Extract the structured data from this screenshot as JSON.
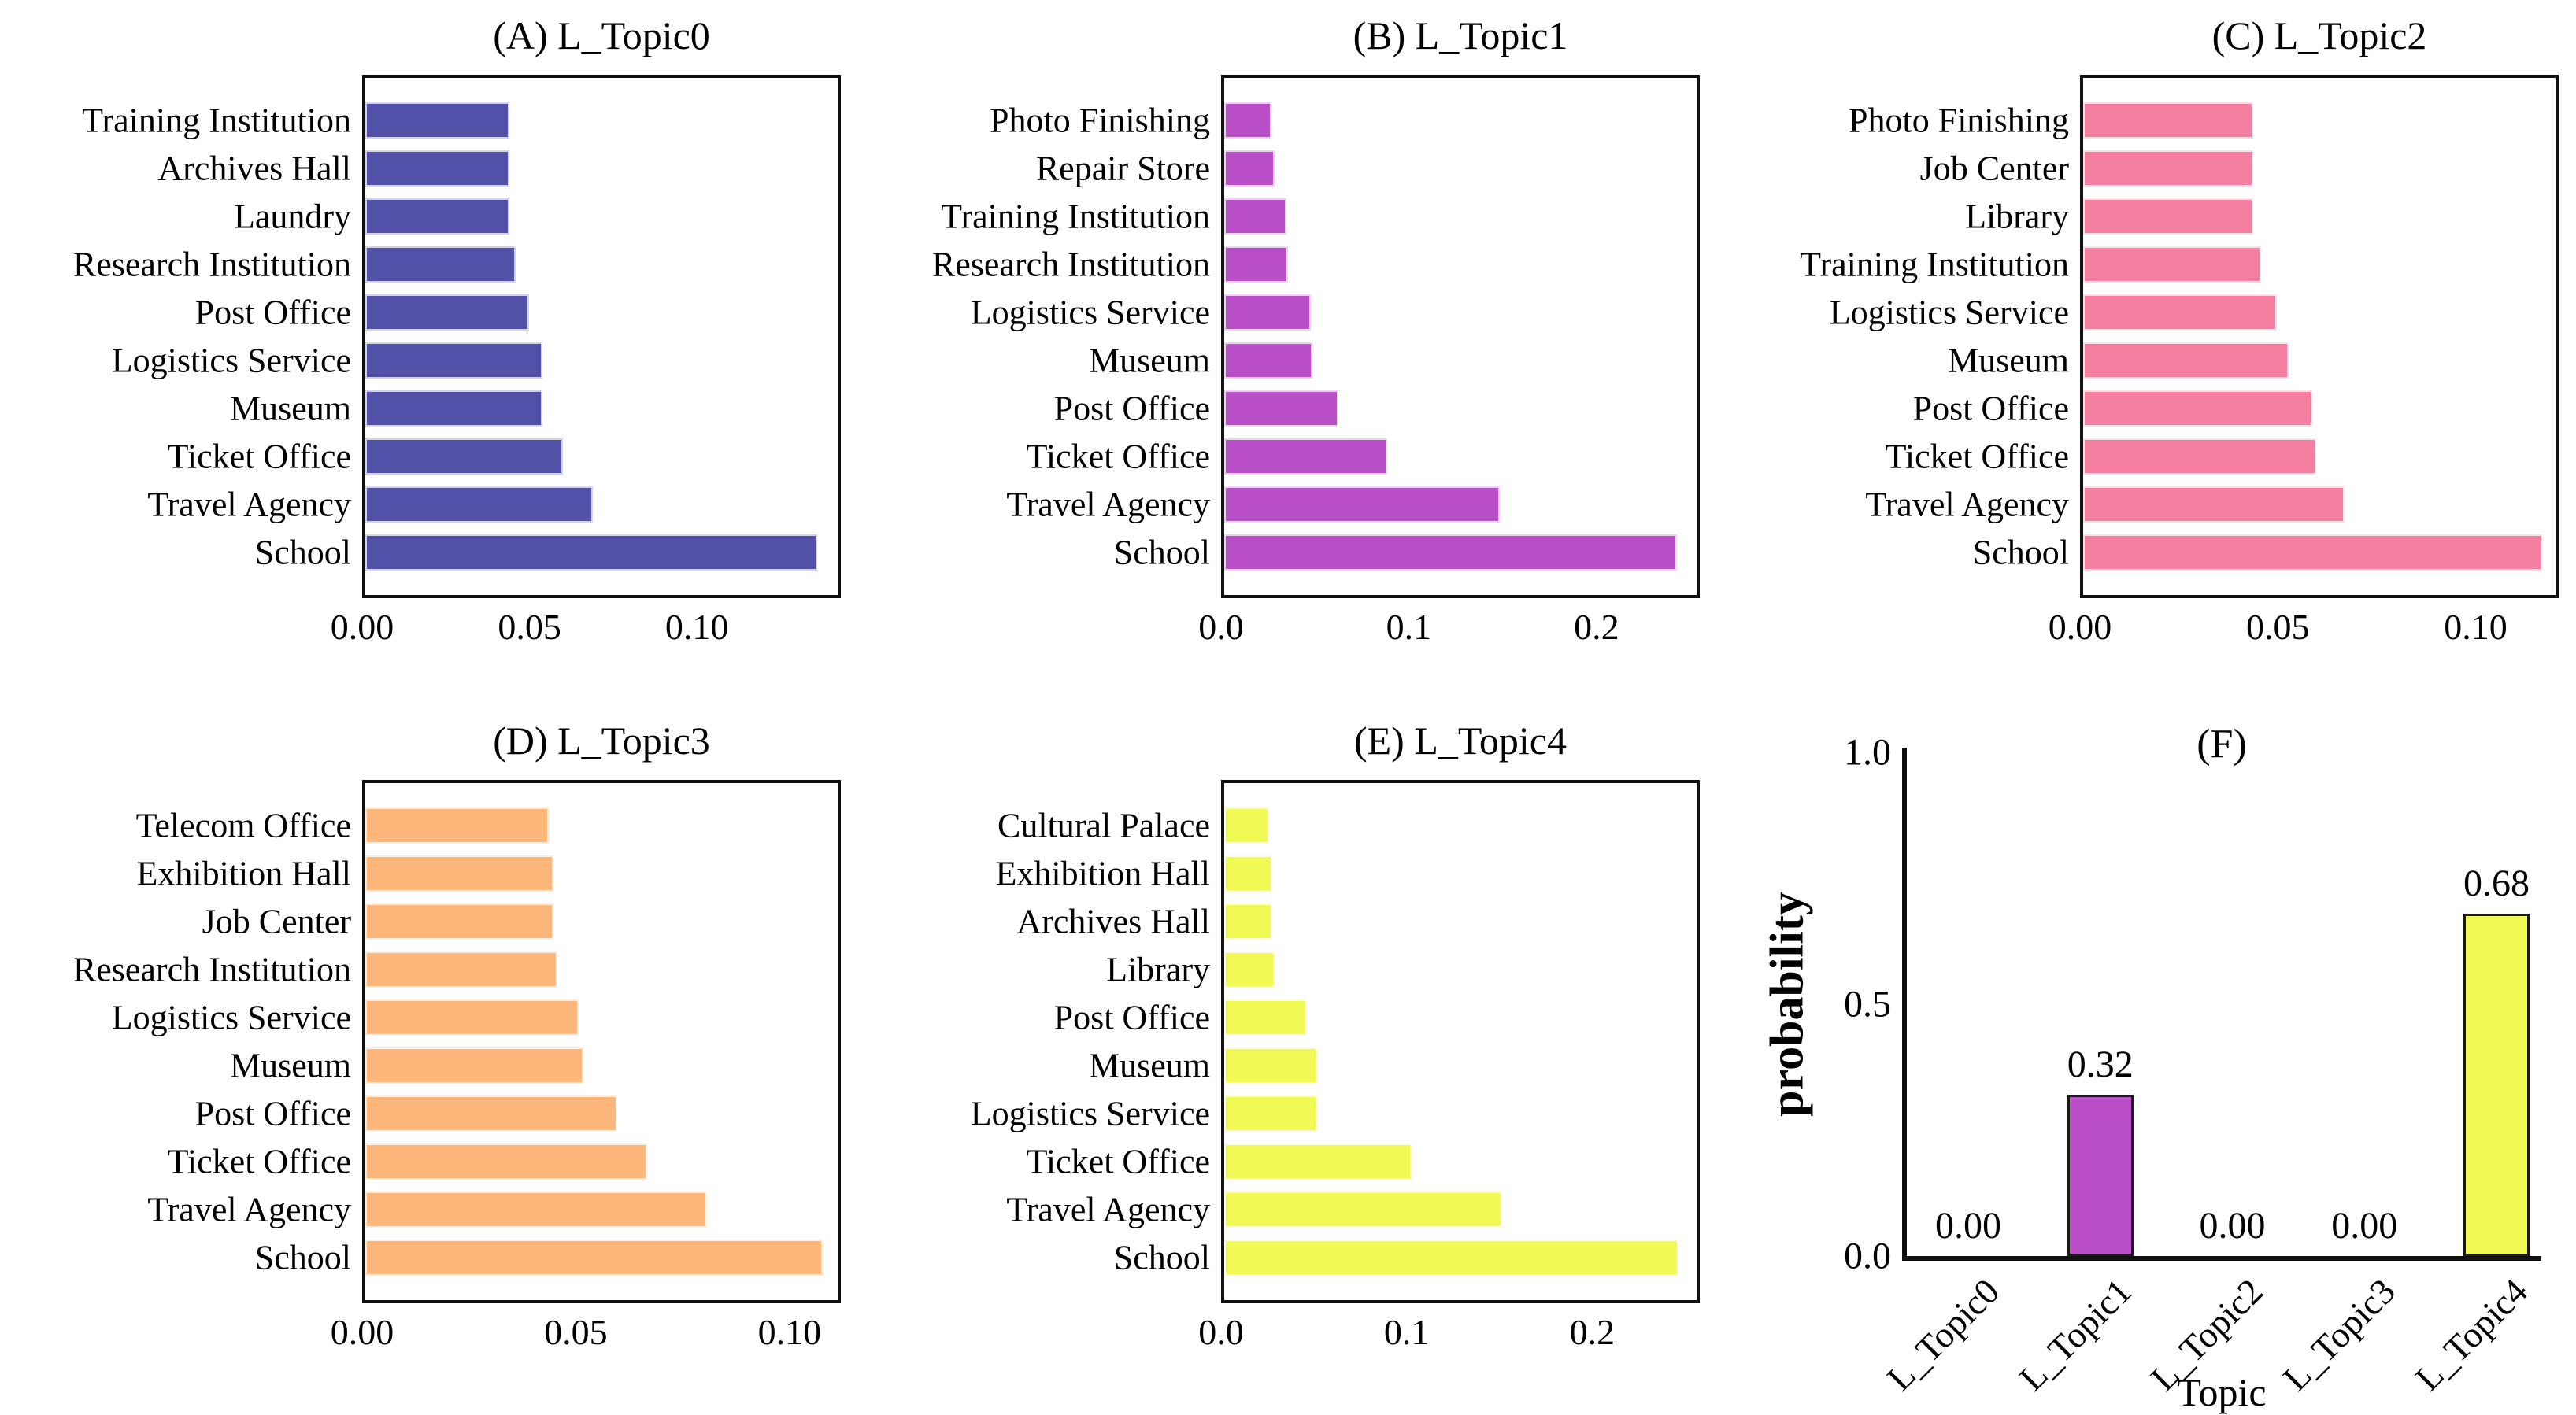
{
  "figure": {
    "background": "#ffffff",
    "rows": 2,
    "cols": 3
  },
  "chart_data": [
    {
      "id": "A",
      "type": "bar",
      "orientation": "horizontal",
      "title": "(A) L_Topic0",
      "bar_color": "#5251a7",
      "categories": [
        "Training Institution",
        "Archives Hall",
        "Laundry",
        "Research Institution",
        "Post Office",
        "Logistics Service",
        "Museum",
        "Ticket Office",
        "Travel Agency",
        "School"
      ],
      "values": [
        0.043,
        0.043,
        0.043,
        0.045,
        0.049,
        0.053,
        0.053,
        0.059,
        0.068,
        0.135
      ],
      "xlim": [
        0,
        0.143
      ],
      "xticks": [
        {
          "label": "0.00",
          "value": 0
        },
        {
          "label": "0.05",
          "value": 0.05
        },
        {
          "label": "0.10",
          "value": 0.1
        }
      ],
      "grid": false,
      "legend": false
    },
    {
      "id": "B",
      "type": "bar",
      "orientation": "horizontal",
      "title": "(B) L_Topic1",
      "bar_color": "#b84fc6",
      "categories": [
        "Photo Finishing",
        "Repair Store",
        "Training Institution",
        "Research Institution",
        "Logistics Service",
        "Museum",
        "Post Office",
        "Ticket Office",
        "Travel Agency",
        "School"
      ],
      "values": [
        0.025,
        0.027,
        0.033,
        0.034,
        0.046,
        0.047,
        0.061,
        0.087,
        0.147,
        0.241
      ],
      "xlim": [
        0,
        0.255
      ],
      "xticks": [
        {
          "label": "0.0",
          "value": 0
        },
        {
          "label": "0.1",
          "value": 0.1
        },
        {
          "label": "0.2",
          "value": 0.2
        }
      ],
      "grid": false,
      "legend": false
    },
    {
      "id": "C",
      "type": "bar",
      "orientation": "horizontal",
      "title": "(C) L_Topic2",
      "bar_color": "#f47fa1",
      "categories": [
        "Photo Finishing",
        "Job Center",
        "Library",
        "Training Institution",
        "Logistics Service",
        "Museum",
        "Post Office",
        "Ticket Office",
        "Travel Agency",
        "School"
      ],
      "values": [
        0.043,
        0.043,
        0.043,
        0.045,
        0.049,
        0.052,
        0.058,
        0.059,
        0.066,
        0.116
      ],
      "xlim": [
        0,
        0.121
      ],
      "xticks": [
        {
          "label": "0.00",
          "value": 0
        },
        {
          "label": "0.05",
          "value": 0.05
        },
        {
          "label": "0.10",
          "value": 0.1
        }
      ],
      "grid": false,
      "legend": false
    },
    {
      "id": "D",
      "type": "bar",
      "orientation": "horizontal",
      "title": "(D) L_Topic3",
      "bar_color": "#fdb77a",
      "categories": [
        "Telecom Office",
        "Exhibition Hall",
        "Job Center",
        "Research Institution",
        "Logistics Service",
        "Museum",
        "Post Office",
        "Ticket Office",
        "Travel Agency",
        "School"
      ],
      "values": [
        0.043,
        0.044,
        0.044,
        0.045,
        0.05,
        0.051,
        0.059,
        0.066,
        0.08,
        0.107
      ],
      "xlim": [
        0,
        0.112
      ],
      "xticks": [
        {
          "label": "0.00",
          "value": 0
        },
        {
          "label": "0.05",
          "value": 0.05
        },
        {
          "label": "0.10",
          "value": 0.1
        }
      ],
      "grid": false,
      "legend": false
    },
    {
      "id": "E",
      "type": "bar",
      "orientation": "horizontal",
      "title": "(E) L_Topic4",
      "bar_color": "#f1fa55",
      "categories": [
        "Cultural Palace",
        "Exhibition Hall",
        "Archives Hall",
        "Library",
        "Post Office",
        "Museum",
        "Logistics Service",
        "Ticket Office",
        "Travel Agency",
        "School"
      ],
      "values": [
        0.024,
        0.026,
        0.026,
        0.027,
        0.044,
        0.05,
        0.05,
        0.101,
        0.15,
        0.245
      ],
      "xlim": [
        0,
        0.258
      ],
      "xticks": [
        {
          "label": "0.0",
          "value": 0
        },
        {
          "label": "0.1",
          "value": 0.1
        },
        {
          "label": "0.2",
          "value": 0.2
        }
      ],
      "grid": false,
      "legend": false
    },
    {
      "id": "F",
      "type": "bar",
      "orientation": "vertical",
      "title": "(F)",
      "xlabel": "Topic",
      "ylabel": "probability",
      "categories": [
        "L_Topic0",
        "L_Topic1",
        "L_Topic2",
        "L_Topic3",
        "L_Topic4"
      ],
      "values": [
        0.0,
        0.32,
        0.0,
        0.0,
        0.68
      ],
      "value_labels": [
        "0.00",
        "0.32",
        "0.00",
        "0.00",
        "0.68"
      ],
      "bar_colors": [
        "#5251a7",
        "#b84fc6",
        "#f47fa1",
        "#fdb77a",
        "#f1fa55"
      ],
      "bar_edge_color": "#1a1a1a",
      "ylim": [
        0,
        1
      ],
      "yticks": [
        {
          "label": "0.0",
          "value": 0
        },
        {
          "label": "0.5",
          "value": 0.5
        },
        {
          "label": "1.0",
          "value": 1.0
        }
      ],
      "grid": false,
      "legend": false
    }
  ]
}
